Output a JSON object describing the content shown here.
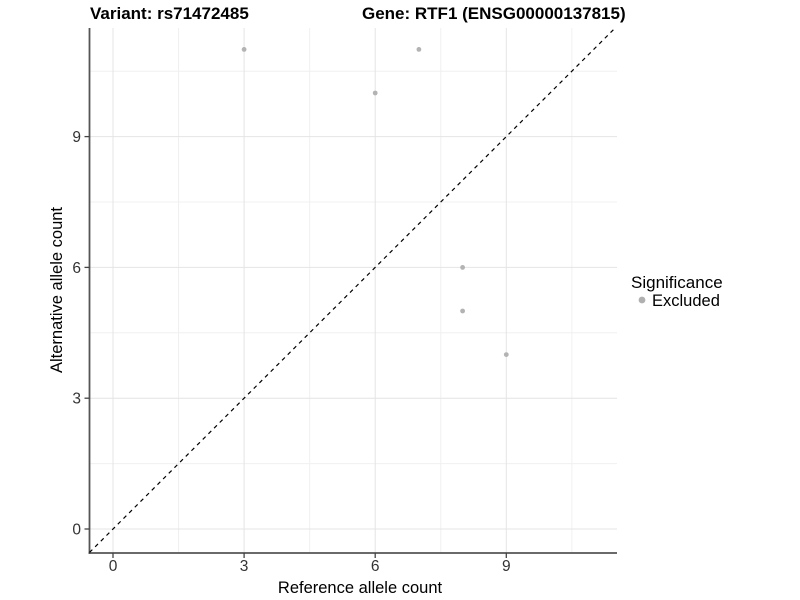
{
  "header": {
    "variant_title": "Variant: rs71472485",
    "gene_title": "Gene: RTF1 (ENSG00000137815)"
  },
  "chart_data": {
    "type": "scatter",
    "title": "Variant: rs71472485    Gene: RTF1 (ENSG00000137815)",
    "xlabel": "Reference allele count",
    "ylabel": "Alternative allele count",
    "xlim": [
      -0.55,
      11.55
    ],
    "ylim": [
      -0.55,
      11.55
    ],
    "x_ticks": [
      0,
      3,
      6,
      9
    ],
    "y_ticks": [
      0,
      3,
      6,
      9
    ],
    "x_minor_gridlines": [
      1.5,
      4.5,
      7.5,
      10.5
    ],
    "y_minor_gridlines": [
      1.5,
      4.5,
      7.5,
      10.5
    ],
    "grid": "major+minor",
    "series": [
      {
        "name": "Excluded",
        "marker": "circle",
        "color": "#b3b3b3",
        "points": [
          [
            3,
            11
          ],
          [
            7,
            11
          ],
          [
            6,
            10
          ],
          [
            8,
            6
          ],
          [
            8,
            5
          ],
          [
            9,
            4
          ]
        ]
      }
    ],
    "reference_line": {
      "type": "identity y=x",
      "style": "dashed",
      "color": "#000000"
    },
    "legend": {
      "position": "right",
      "title": "Significance",
      "items": [
        {
          "label": "Excluded",
          "marker": "circle",
          "color": "#b0b0b0"
        }
      ]
    },
    "style": {
      "background": "#ffffff",
      "grid_major_color": "#e4e4e4",
      "grid_minor_color": "#f0f0f0",
      "axis_color": "#555555",
      "tick_color": "#444444",
      "tick_label_color": "#333333",
      "point_color": "#b3b3b3"
    }
  }
}
